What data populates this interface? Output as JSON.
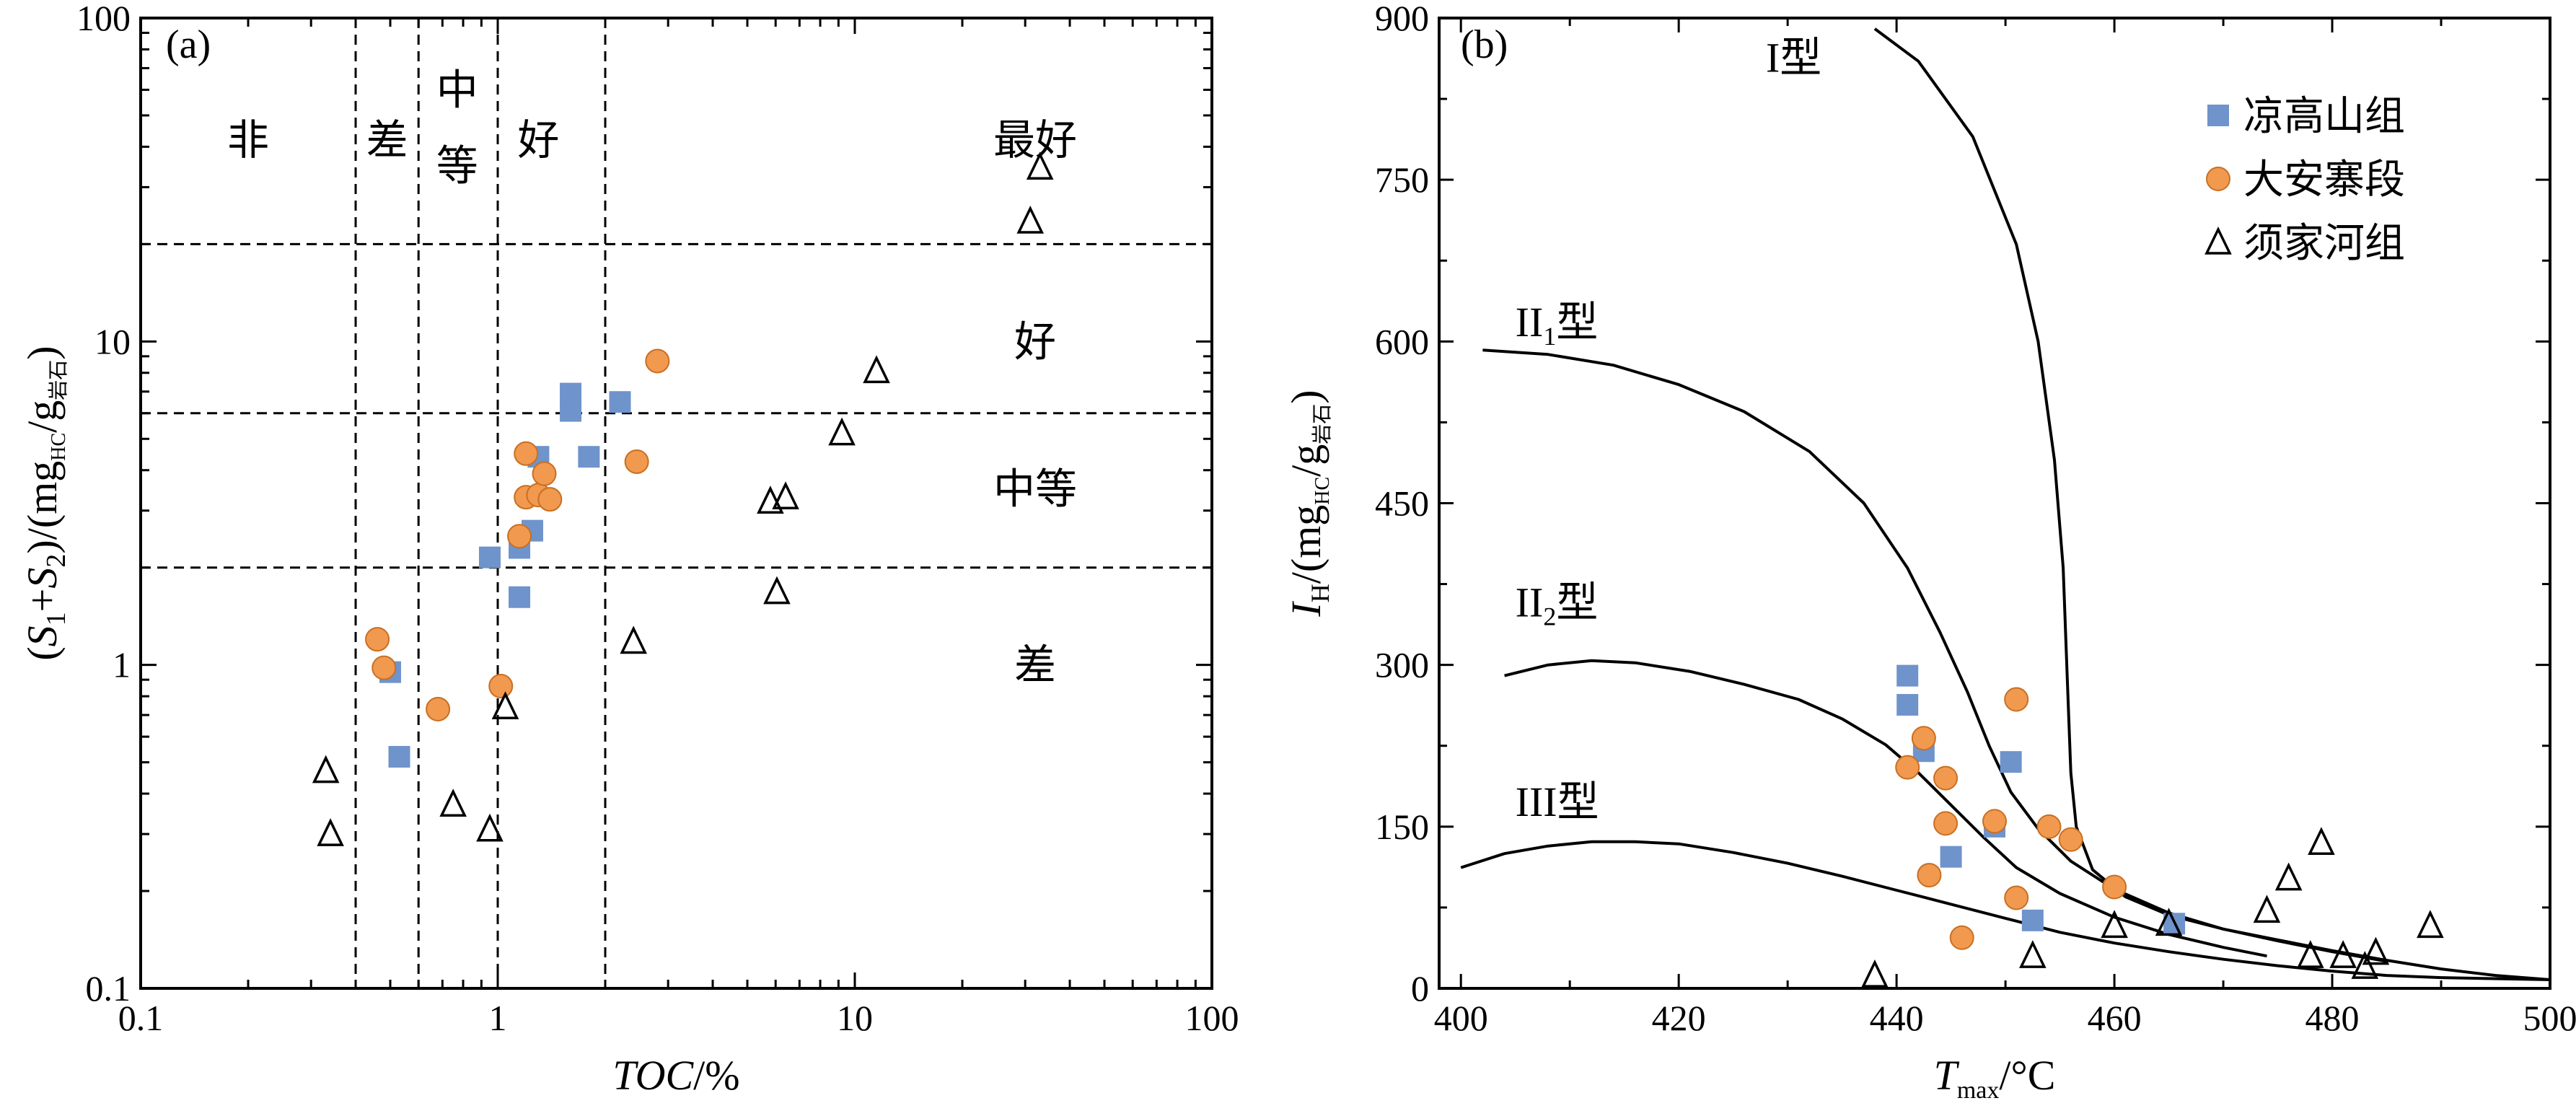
{
  "colors": {
    "liang": "#6f93cb",
    "daan": "#f0994f",
    "daan_edge": "#c96f22",
    "xujia_edge": "#000000",
    "axis": "#000000"
  },
  "chart_data": [
    {
      "panel": "(a)",
      "type": "scatter",
      "x_scale": "log",
      "y_scale": "log",
      "xlim": [
        0.1,
        100
      ],
      "ylim": [
        0.1,
        100
      ],
      "xlabel": {
        "italic": "TOC",
        "rest": "/%"
      },
      "ylabel": {
        "pre": "(",
        "s1": "S",
        "s1_sub": "1",
        "plus": "+",
        "s2": "S",
        "s2_sub": "2",
        "post": ")/(mg",
        "hc_sub": "HC",
        "slash": "/g",
        "rock_sub": "岩石",
        "end": ")"
      },
      "x_ticks": [
        {
          "v": 0.1,
          "label": "0.1"
        },
        {
          "v": 1,
          "label": "1"
        },
        {
          "v": 10,
          "label": "10"
        },
        {
          "v": 100,
          "label": "100"
        }
      ],
      "y_ticks": [
        {
          "v": 0.1,
          "label": "0.1"
        },
        {
          "v": 1,
          "label": "1"
        },
        {
          "v": 10,
          "label": "10"
        },
        {
          "v": 100,
          "label": "100"
        }
      ],
      "vertical_boundaries": [
        0.4,
        0.6,
        1.0,
        2.0
      ],
      "horizontal_boundaries": [
        2,
        6,
        20
      ],
      "zone_labels_top": [
        {
          "text": "非",
          "x": 0.2,
          "y": 42
        },
        {
          "text": "差",
          "x": 0.49,
          "y": 42
        },
        {
          "text": "中",
          "x": 0.77,
          "y": 60
        },
        {
          "text": "等",
          "x": 0.77,
          "y": 35
        },
        {
          "text": "好",
          "x": 1.3,
          "y": 42
        },
        {
          "text": "最好",
          "x": 32,
          "y": 42
        }
      ],
      "zone_labels_right": [
        {
          "text": "好",
          "x": 32,
          "y": 10
        },
        {
          "text": "中等",
          "x": 32,
          "y": 3.5
        },
        {
          "text": "差",
          "x": 32,
          "y": 1
        }
      ],
      "series": [
        {
          "name": "凉高山组",
          "marker": "square",
          "points": [
            [
              0.5,
              0.95
            ],
            [
              0.53,
              0.52
            ],
            [
              0.95,
              2.15
            ],
            [
              1.15,
              2.3
            ],
            [
              1.15,
              1.62
            ],
            [
              1.25,
              2.6
            ],
            [
              1.3,
              4.4
            ],
            [
              1.6,
              6.1
            ],
            [
              1.6,
              6.9
            ],
            [
              1.8,
              4.4
            ],
            [
              2.2,
              6.5
            ]
          ]
        },
        {
          "name": "大安寨段",
          "marker": "circle",
          "points": [
            [
              0.46,
              1.2
            ],
            [
              0.48,
              0.98
            ],
            [
              0.68,
              0.73
            ],
            [
              1.02,
              0.86
            ],
            [
              1.15,
              2.5
            ],
            [
              1.2,
              4.5
            ],
            [
              1.2,
              3.3
            ],
            [
              1.3,
              3.35
            ],
            [
              1.35,
              3.9
            ],
            [
              1.4,
              3.25
            ],
            [
              2.45,
              4.25
            ],
            [
              2.8,
              8.7
            ]
          ]
        },
        {
          "name": "须家河组",
          "marker": "triangle",
          "points": [
            [
              0.33,
              0.47
            ],
            [
              0.34,
              0.3
            ],
            [
              0.75,
              0.37
            ],
            [
              0.95,
              0.31
            ],
            [
              1.05,
              0.74
            ],
            [
              2.4,
              1.18
            ],
            [
              5.8,
              3.2
            ],
            [
              6.05,
              1.68
            ],
            [
              6.4,
              3.3
            ],
            [
              9.2,
              5.2
            ],
            [
              11.5,
              8.1
            ],
            [
              31,
              23.5
            ],
            [
              33,
              34.5
            ]
          ]
        }
      ]
    },
    {
      "panel": "(b)",
      "type": "scatter",
      "xlim": [
        398,
        500
      ],
      "ylim": [
        0,
        900
      ],
      "xlabel": {
        "t": "T",
        "t_sub": "max",
        "rest": "/°C"
      },
      "ylabel": {
        "i": "I",
        "i_sub": "H",
        "post": "/(mg",
        "hc_sub": "HC",
        "slash": "/g",
        "rock_sub": "岩石",
        "end": ")"
      },
      "x_ticks": [
        400,
        420,
        440,
        460,
        480,
        500
      ],
      "y_ticks": [
        0,
        150,
        300,
        450,
        600,
        750,
        900
      ],
      "curve_labels": [
        {
          "roman": "I",
          "sub": "",
          "suffix": "型",
          "x": 428,
          "y": 850
        },
        {
          "roman": "II",
          "sub": "1",
          "suffix": "型",
          "x": 405,
          "y": 605
        },
        {
          "roman": "II",
          "sub": "2",
          "suffix": "型",
          "x": 405,
          "y": 345
        },
        {
          "roman": "III",
          "sub": "",
          "suffix": "型",
          "x": 405,
          "y": 160
        }
      ],
      "curves": [
        {
          "name": "I",
          "points": [
            [
              438,
              890
            ],
            [
              442,
              860
            ],
            [
              447,
              790
            ],
            [
              451,
              690
            ],
            [
              453,
              600
            ],
            [
              454.5,
              490
            ],
            [
              455.3,
              390
            ],
            [
              455.7,
              280
            ],
            [
              456.0,
              200
            ],
            [
              456.5,
              150
            ],
            [
              458,
              110
            ],
            [
              461,
              85
            ],
            [
              465,
              68
            ],
            [
              470,
              55
            ],
            [
              475,
              45
            ],
            [
              480,
              35
            ],
            [
              485,
              26
            ],
            [
              490,
              18
            ],
            [
              495,
              12
            ],
            [
              500,
              8
            ]
          ]
        },
        {
          "name": "II1",
          "points": [
            [
              402,
              592
            ],
            [
              408,
              588
            ],
            [
              414,
              578
            ],
            [
              420,
              560
            ],
            [
              426,
              535
            ],
            [
              432,
              498
            ],
            [
              437,
              450
            ],
            [
              441,
              390
            ],
            [
              444,
              330
            ],
            [
              446.5,
              275
            ],
            [
              448.5,
              225
            ],
            [
              450.5,
              182
            ],
            [
              453,
              148
            ],
            [
              456,
              118
            ],
            [
              460,
              92
            ],
            [
              465,
              70
            ],
            [
              470,
              55
            ],
            [
              475,
              44
            ],
            [
              480,
              34
            ],
            [
              485,
              25
            ]
          ]
        },
        {
          "name": "II2",
          "points": [
            [
              404,
              290
            ],
            [
              408,
              300
            ],
            [
              412,
              304
            ],
            [
              416,
              302
            ],
            [
              421,
              294
            ],
            [
              426,
              282
            ],
            [
              431,
              268
            ],
            [
              435,
              250
            ],
            [
              439,
              226
            ],
            [
              442,
              200
            ],
            [
              445,
              170
            ],
            [
              448,
              140
            ],
            [
              451,
              112
            ],
            [
              455,
              88
            ],
            [
              460,
              66
            ],
            [
              465,
              50
            ],
            [
              470,
              38
            ],
            [
              474,
              30
            ]
          ]
        },
        {
          "name": "III",
          "points": [
            [
              400,
              112
            ],
            [
              404,
              125
            ],
            [
              408,
              132
            ],
            [
              412,
              136
            ],
            [
              416,
              136
            ],
            [
              420,
              134
            ],
            [
              425,
              126
            ],
            [
              430,
              116
            ],
            [
              435,
              104
            ],
            [
              440,
              91
            ],
            [
              445,
              78
            ],
            [
              450,
              65
            ],
            [
              455,
              52
            ],
            [
              460,
              42
            ],
            [
              465,
              34
            ],
            [
              470,
              27
            ],
            [
              475,
              21
            ],
            [
              480,
              16
            ],
            [
              485,
              12
            ],
            [
              490,
              10
            ],
            [
              500,
              8
            ]
          ]
        }
      ],
      "series": [
        {
          "name": "凉高山组",
          "marker": "square",
          "points": [
            [
              441,
              290
            ],
            [
              441,
              263
            ],
            [
              442.5,
              220
            ],
            [
              445,
              122
            ],
            [
              449,
              150
            ],
            [
              450.5,
              210
            ],
            [
              452.5,
              63
            ],
            [
              465.5,
              60
            ]
          ]
        },
        {
          "name": "大安寨段",
          "marker": "circle",
          "points": [
            [
              441,
              205
            ],
            [
              442.5,
              232
            ],
            [
              443,
              105
            ],
            [
              444.5,
              195
            ],
            [
              444.5,
              153
            ],
            [
              446,
              47
            ],
            [
              449,
              155
            ],
            [
              451,
              84
            ],
            [
              451,
              268
            ],
            [
              454,
              150
            ],
            [
              456,
              138
            ],
            [
              460,
              94
            ]
          ]
        },
        {
          "name": "须家河组",
          "marker": "triangle",
          "points": [
            [
              438,
              12
            ],
            [
              452.5,
              30
            ],
            [
              460,
              58
            ],
            [
              465,
              60
            ],
            [
              474,
              72
            ],
            [
              476,
              102
            ],
            [
              478,
              30
            ],
            [
              479,
              135
            ],
            [
              481,
              30
            ],
            [
              483,
              20
            ],
            [
              484,
              33
            ],
            [
              489,
              58
            ]
          ]
        }
      ],
      "legend": {
        "position": "top-right",
        "entries": [
          "凉高山组",
          "大安寨段",
          "须家河组"
        ]
      }
    }
  ]
}
